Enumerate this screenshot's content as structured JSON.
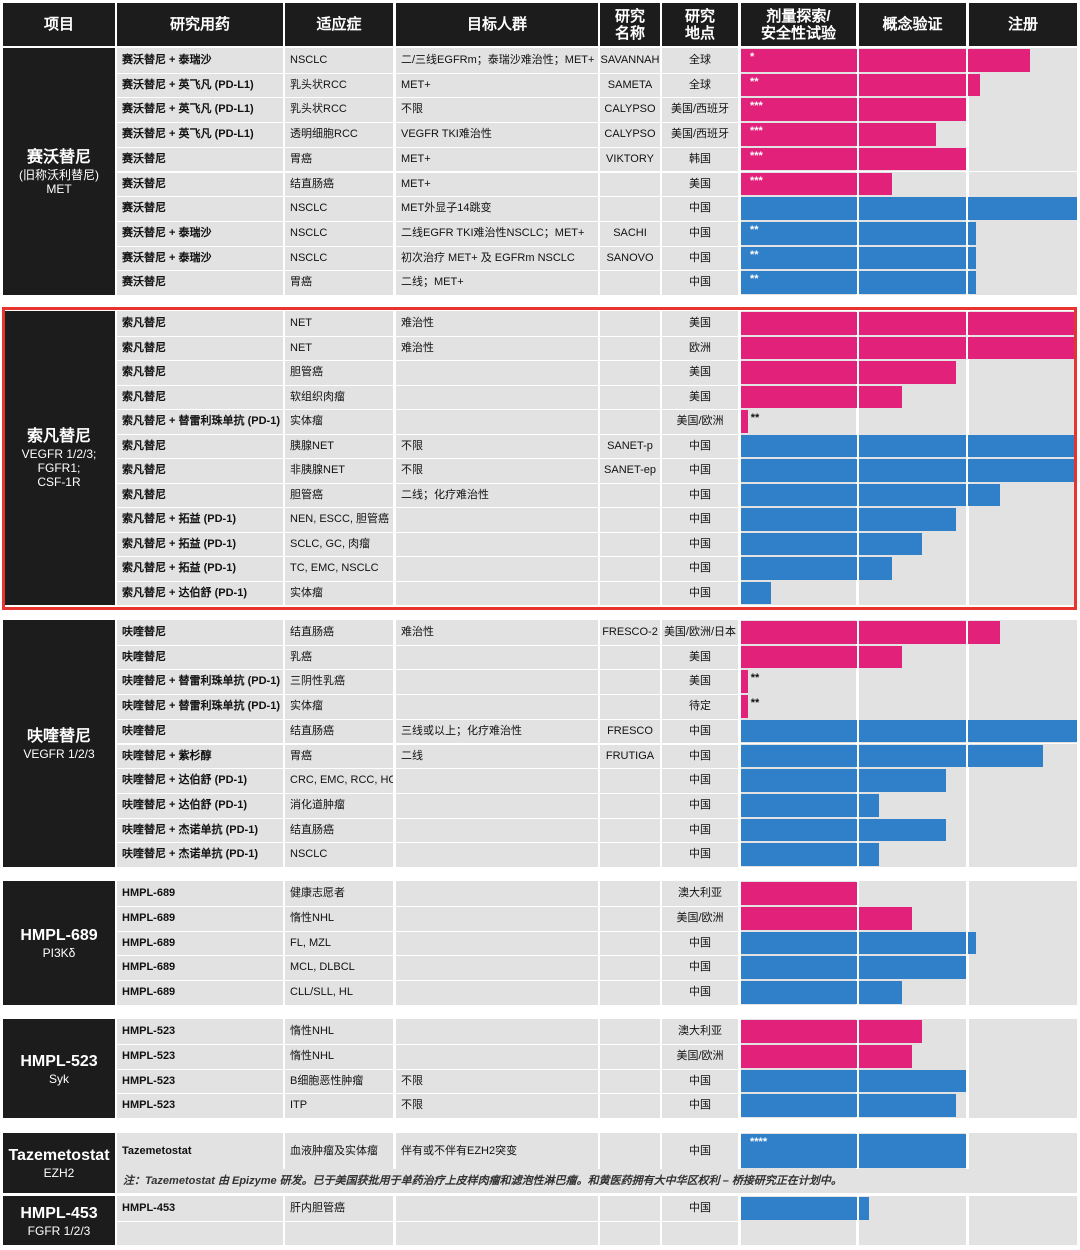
{
  "headers": [
    "项目",
    "研究用药",
    "适应症",
    "目标人群",
    "研究\n名称",
    "研究\n地点",
    "剂量探索/\n安全性试验",
    "概念验证",
    "注册"
  ],
  "colors": {
    "pink": "#e2217a",
    "blue": "#2f80c8",
    "header_bg": "#1c1c1c",
    "row_bg": "#e2e2e2",
    "highlight": "#e8342f"
  },
  "highlighted_group": "索凡替尼",
  "groups": [
    {
      "name": "赛沃替尼",
      "sub": "(旧称沃利替尼)\nMET",
      "rows": [
        {
          "drug": "赛沃替尼 + 泰瑞沙",
          "ind": "NSCLC",
          "pop": "二/三线EGFRm；泰瑞沙难治性；MET+",
          "study": "SAVANNAH",
          "loc": "全球",
          "phase": 0.86,
          "color": "pink",
          "note": "*"
        },
        {
          "drug": "赛沃替尼 + 英飞凡 (PD-L1)",
          "ind": "乳头状RCC",
          "pop": "MET+",
          "study": "SAMETA",
          "loc": "全球",
          "phase": 0.71,
          "color": "pink",
          "note": "**"
        },
        {
          "drug": "赛沃替尼 + 英飞凡 (PD-L1)",
          "ind": "乳头状RCC",
          "pop": "不限",
          "study": "CALYPSO",
          "loc": "美国/西班牙",
          "phase": 0.67,
          "color": "pink",
          "note": "***"
        },
        {
          "drug": "赛沃替尼 + 英飞凡 (PD-L1)",
          "ind": "透明细胞RCC",
          "pop": "VEGFR TKI难治性",
          "study": "CALYPSO",
          "loc": "美国/西班牙",
          "phase": 0.58,
          "color": "pink",
          "note": "***"
        },
        {
          "drug": "赛沃替尼",
          "ind": "胃癌",
          "pop": "MET+",
          "study": "VIKTORY",
          "loc": "韩国",
          "phase": 0.67,
          "color": "pink",
          "note": "***"
        },
        {
          "drug": "赛沃替尼",
          "ind": "结直肠癌",
          "pop": "MET+",
          "study": "",
          "loc": "美国",
          "phase": 0.45,
          "color": "pink",
          "note": "***"
        },
        {
          "drug": "赛沃替尼",
          "ind": "NSCLC",
          "pop": "MET外显子14跳变",
          "study": "",
          "loc": "中国",
          "phase": 1.0,
          "color": "blue",
          "note": ""
        },
        {
          "drug": "赛沃替尼 + 泰瑞沙",
          "ind": "NSCLC",
          "pop": "二线EGFR TKI难治性NSCLC；MET+",
          "study": "SACHI",
          "loc": "中国",
          "phase": 0.7,
          "color": "blue",
          "note": "**"
        },
        {
          "drug": "赛沃替尼 + 泰瑞沙",
          "ind": "NSCLC",
          "pop": "初次治疗 MET+ 及 EGFRm NSCLC",
          "study": "SANOVO",
          "loc": "中国",
          "phase": 0.7,
          "color": "blue",
          "note": "**"
        },
        {
          "drug": "赛沃替尼",
          "ind": "胃癌",
          "pop": "二线；MET+",
          "study": "",
          "loc": "中国",
          "phase": 0.7,
          "color": "blue",
          "note": "**"
        }
      ]
    },
    {
      "name": "索凡替尼",
      "sub": "VEGFR 1/2/3;\nFGFR1;\nCSF-1R",
      "rows": [
        {
          "drug": "索凡替尼",
          "ind": "NET",
          "pop": "难治性",
          "study": "",
          "loc": "美国",
          "phase": 0.99,
          "color": "pink",
          "note": ""
        },
        {
          "drug": "索凡替尼",
          "ind": "NET",
          "pop": "难治性",
          "study": "",
          "loc": "欧洲",
          "phase": 0.99,
          "color": "pink",
          "note": ""
        },
        {
          "drug": "索凡替尼",
          "ind": "胆管癌",
          "pop": "",
          "study": "",
          "loc": "美国",
          "phase": 0.64,
          "color": "pink",
          "note": ""
        },
        {
          "drug": "索凡替尼",
          "ind": "软组织肉瘤",
          "pop": "",
          "study": "",
          "loc": "美国",
          "phase": 0.48,
          "color": "pink",
          "note": ""
        },
        {
          "drug": "索凡替尼 + 替雷利珠单抗 (PD-1)",
          "ind": "实体瘤",
          "pop": "",
          "study": "",
          "loc": "美国/欧洲",
          "phase": 0.02,
          "color": "pink",
          "note": "**"
        },
        {
          "drug": "索凡替尼",
          "ind": "胰腺NET",
          "pop": "不限",
          "study": "SANET-p",
          "loc": "中国",
          "phase": 0.99,
          "color": "blue",
          "note": ""
        },
        {
          "drug": "索凡替尼",
          "ind": "非胰腺NET",
          "pop": "不限",
          "study": "SANET-ep",
          "loc": "中国",
          "phase": 0.99,
          "color": "blue",
          "note": ""
        },
        {
          "drug": "索凡替尼",
          "ind": "胆管癌",
          "pop": "二线；化疗难治性",
          "study": "",
          "loc": "中国",
          "phase": 0.77,
          "color": "blue",
          "note": ""
        },
        {
          "drug": "索凡替尼 + 拓益 (PD-1)",
          "ind": "NEN, ESCC, 胆管癌",
          "pop": "",
          "study": "",
          "loc": "中国",
          "phase": 0.64,
          "color": "blue",
          "note": ""
        },
        {
          "drug": "索凡替尼 + 拓益 (PD-1)",
          "ind": "SCLC, GC, 肉瘤",
          "pop": "",
          "study": "",
          "loc": "中国",
          "phase": 0.54,
          "color": "blue",
          "note": ""
        },
        {
          "drug": "索凡替尼 + 拓益 (PD-1)",
          "ind": "TC, EMC, NSCLC",
          "pop": "",
          "study": "",
          "loc": "中国",
          "phase": 0.45,
          "color": "blue",
          "note": ""
        },
        {
          "drug": "索凡替尼 + 达伯舒 (PD-1)",
          "ind": "实体瘤",
          "pop": "",
          "study": "",
          "loc": "中国",
          "phase": 0.09,
          "color": "blue",
          "note": ""
        }
      ]
    },
    {
      "name": "呋喹替尼",
      "sub": "VEGFR 1/2/3",
      "rows": [
        {
          "drug": "呋喹替尼",
          "ind": "结直肠癌",
          "pop": "难治性",
          "study": "FRESCO-2",
          "loc": "美国/欧洲/日本",
          "phase": 0.77,
          "color": "pink",
          "note": ""
        },
        {
          "drug": "呋喹替尼",
          "ind": "乳癌",
          "pop": "",
          "study": "",
          "loc": "美国",
          "phase": 0.48,
          "color": "pink",
          "note": ""
        },
        {
          "drug": "呋喹替尼 + 替雷利珠单抗 (PD-1)",
          "ind": "三阴性乳癌",
          "pop": "",
          "study": "",
          "loc": "美国",
          "phase": 0.02,
          "color": "pink",
          "note": "**"
        },
        {
          "drug": "呋喹替尼 + 替雷利珠单抗 (PD-1)",
          "ind": "实体瘤",
          "pop": "",
          "study": "",
          "loc": "待定",
          "phase": 0.02,
          "color": "pink",
          "note": "**"
        },
        {
          "drug": "呋喹替尼",
          "ind": "结直肠癌",
          "pop": "三线或以上；化疗难治性",
          "study": "FRESCO",
          "loc": "中国",
          "phase": 1.0,
          "color": "blue",
          "note": ""
        },
        {
          "drug": "呋喹替尼 + 紫杉醇",
          "ind": "胃癌",
          "pop": "二线",
          "study": "FRUTIGA",
          "loc": "中国",
          "phase": 0.9,
          "color": "blue",
          "note": ""
        },
        {
          "drug": "呋喹替尼 + 达伯舒 (PD-1)",
          "ind": "CRC, EMC, RCC, HCC",
          "pop": "",
          "study": "",
          "loc": "中国",
          "phase": 0.61,
          "color": "blue",
          "note": ""
        },
        {
          "drug": "呋喹替尼 + 达伯舒 (PD-1)",
          "ind": "消化道肿瘤",
          "pop": "",
          "study": "",
          "loc": "中国",
          "phase": 0.41,
          "color": "blue",
          "note": ""
        },
        {
          "drug": "呋喹替尼 + 杰诺单抗 (PD-1)",
          "ind": "结直肠癌",
          "pop": "",
          "study": "",
          "loc": "中国",
          "phase": 0.61,
          "color": "blue",
          "note": ""
        },
        {
          "drug": "呋喹替尼 + 杰诺单抗 (PD-1)",
          "ind": "NSCLC",
          "pop": "",
          "study": "",
          "loc": "中国",
          "phase": 0.41,
          "color": "blue",
          "note": ""
        }
      ]
    },
    {
      "name": "HMPL-689",
      "sub": "PI3Kδ",
      "rows": [
        {
          "drug": "HMPL-689",
          "ind": "健康志愿者",
          "pop": "",
          "study": "",
          "loc": "澳大利亚",
          "phase": 0.35,
          "color": "pink",
          "note": ""
        },
        {
          "drug": "HMPL-689",
          "ind": "惰性NHL",
          "pop": "",
          "study": "",
          "loc": "美国/欧洲",
          "phase": 0.51,
          "color": "pink",
          "note": ""
        },
        {
          "drug": "HMPL-689",
          "ind": "FL, MZL",
          "pop": "",
          "study": "",
          "loc": "中国",
          "phase": 0.7,
          "color": "blue",
          "note": ""
        },
        {
          "drug": "HMPL-689",
          "ind": "MCL, DLBCL",
          "pop": "",
          "study": "",
          "loc": "中国",
          "phase": 0.67,
          "color": "blue",
          "note": ""
        },
        {
          "drug": "HMPL-689",
          "ind": "CLL/SLL, HL",
          "pop": "",
          "study": "",
          "loc": "中国",
          "phase": 0.48,
          "color": "blue",
          "note": ""
        }
      ]
    },
    {
      "name": "HMPL-523",
      "sub": "Syk",
      "rows": [
        {
          "drug": "HMPL-523",
          "ind": "惰性NHL",
          "pop": "",
          "study": "",
          "loc": "澳大利亚",
          "phase": 0.54,
          "color": "pink",
          "note": ""
        },
        {
          "drug": "HMPL-523",
          "ind": "惰性NHL",
          "pop": "",
          "study": "",
          "loc": "美国/欧洲",
          "phase": 0.51,
          "color": "pink",
          "note": ""
        },
        {
          "drug": "HMPL-523",
          "ind": "B细胞恶性肿瘤",
          "pop": "不限",
          "study": "",
          "loc": "中国",
          "phase": 0.67,
          "color": "blue",
          "note": ""
        },
        {
          "drug": "HMPL-523",
          "ind": "ITP",
          "pop": "不限",
          "study": "",
          "loc": "中国",
          "phase": 0.64,
          "color": "blue",
          "note": ""
        }
      ]
    },
    {
      "name": "Tazemetostat",
      "sub": "EZH2",
      "rows": [
        {
          "drug": "Tazemetostat",
          "ind": "血液肿瘤及实体瘤",
          "pop": "伴有或不伴有EZH2突变",
          "study": "",
          "loc": "中国",
          "phase": 0.67,
          "color": "blue",
          "note": "****"
        }
      ],
      "footnote": "注：Tazemetostat 由 Epizyme 研发。已于美国获批用于单药治疗上皮样肉瘤和滤泡性淋巴瘤。和黄医药拥有大中华区权利 – 桥接研究正在计划中。"
    },
    {
      "name": "HMPL-453",
      "sub": "FGFR 1/2/3",
      "rows": [
        {
          "drug": "HMPL-453",
          "ind": "肝内胆管癌",
          "pop": "",
          "study": "",
          "loc": "中国",
          "phase": 0.38,
          "color": "blue",
          "note": ""
        },
        {
          "drug": "",
          "ind": "",
          "pop": "",
          "study": "",
          "loc": "",
          "phase": 0,
          "color": "blue",
          "note": ""
        }
      ]
    }
  ]
}
